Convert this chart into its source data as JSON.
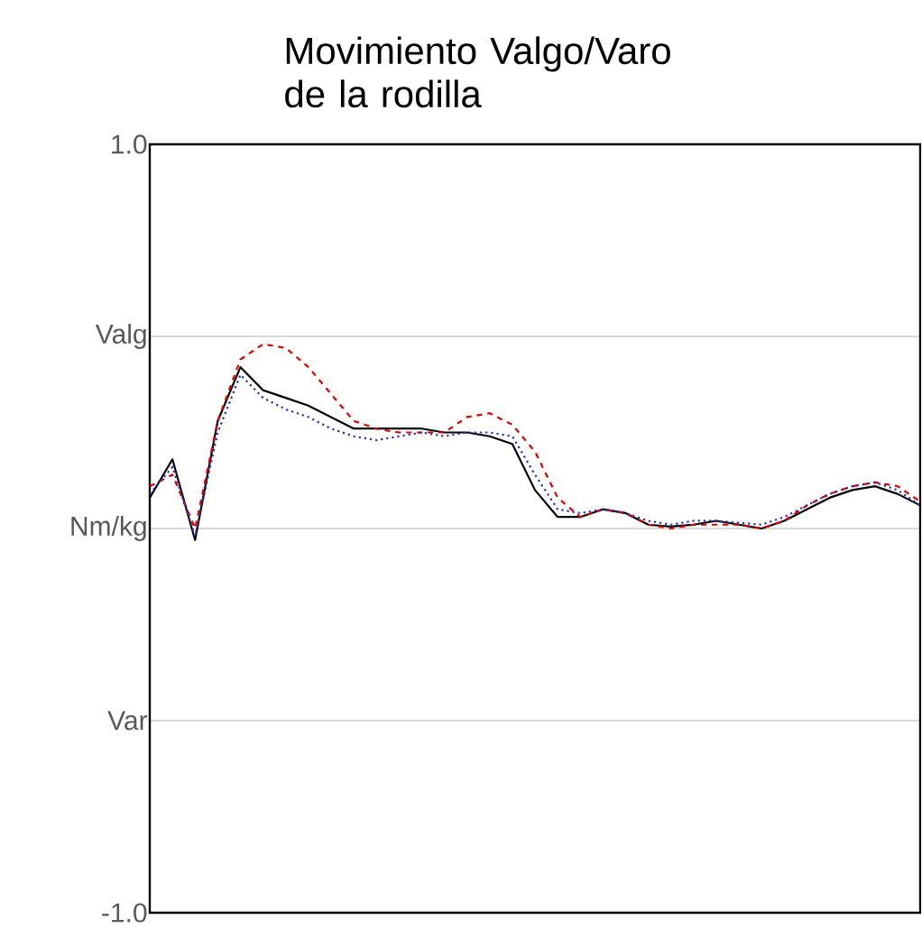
{
  "chart_data": {
    "type": "line",
    "title": "Movimiento Valgo/Varo de la rodilla",
    "categories": [
      null,
      null,
      null,
      null,
      null,
      null,
      null,
      null,
      null,
      null,
      null,
      null,
      null,
      null,
      null,
      null,
      null,
      null,
      null,
      null,
      null,
      null,
      null,
      null,
      null,
      null,
      null,
      null,
      null,
      null,
      null,
      null,
      null,
      null,
      null
    ],
    "series": [
      {
        "color": "#000000",
        "line_style": "solid",
        "values": [
          0.08,
          0.18,
          -0.03,
          0.28,
          0.42,
          0.36,
          0.34,
          0.32,
          0.29,
          0.26,
          0.26,
          0.26,
          0.26,
          0.25,
          0.25,
          0.24,
          0.22,
          0.1,
          0.03,
          0.03,
          0.05,
          0.04,
          0.01,
          0.005,
          0.01,
          0.02,
          0.01,
          0.0,
          0.02,
          0.05,
          0.08,
          0.1,
          0.11,
          0.09,
          0.06
        ]
      },
      {
        "color": "#e00000",
        "line_style": "dashed",
        "values": [
          0.11,
          0.14,
          0.0,
          0.28,
          0.44,
          0.48,
          0.47,
          0.42,
          0.35,
          0.28,
          0.26,
          0.25,
          0.25,
          0.25,
          0.29,
          0.3,
          0.27,
          0.2,
          0.08,
          0.03,
          0.05,
          0.04,
          0.01,
          0.0,
          0.01,
          0.01,
          0.01,
          0.0,
          0.02,
          0.06,
          0.09,
          0.11,
          0.12,
          0.11,
          0.07
        ]
      },
      {
        "color": "#2030c0",
        "line_style": "dotted",
        "values": [
          0.09,
          0.16,
          -0.02,
          0.25,
          0.4,
          0.34,
          0.31,
          0.29,
          0.26,
          0.24,
          0.23,
          0.24,
          0.25,
          0.24,
          0.25,
          0.25,
          0.24,
          0.14,
          0.05,
          0.04,
          0.05,
          0.04,
          0.02,
          0.01,
          0.02,
          0.02,
          0.015,
          0.01,
          0.03,
          0.06,
          0.09,
          0.11,
          0.12,
          0.1,
          0.06
        ]
      }
    ],
    "ylim": [
      -1.0,
      1.0
    ],
    "yticks": [
      {
        "value": 1.0,
        "label": "1.0"
      },
      {
        "value": 0.5,
        "label": "Valg"
      },
      {
        "value": 0,
        "label": "Nm/kg"
      },
      {
        "value": -0.5,
        "label": "Var"
      },
      {
        "value": -1.0,
        "label": "-1.0"
      }
    ],
    "grid": "y",
    "marker": "none"
  }
}
